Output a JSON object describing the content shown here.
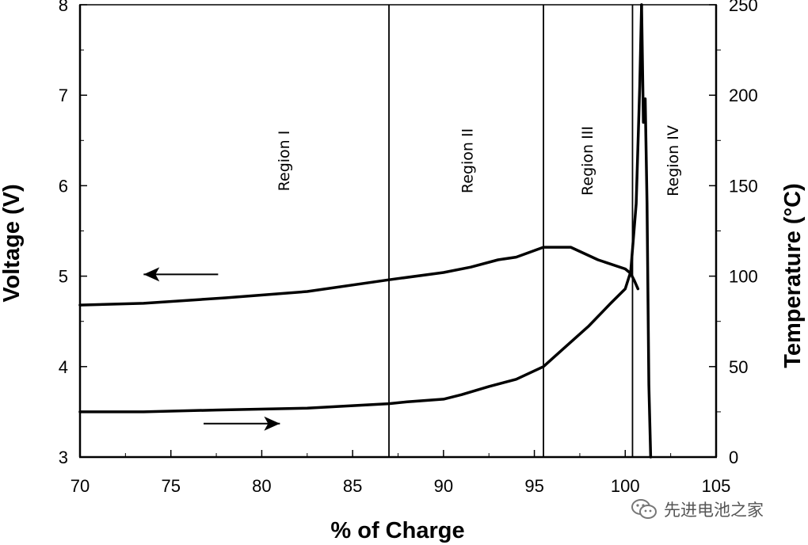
{
  "chart_data": {
    "type": "line",
    "xlabel": "% of Charge",
    "ylabel_left": "Voltage (V)",
    "ylabel_right": "Temperature (°C)",
    "xlim": [
      70,
      105
    ],
    "ylim_left": [
      3,
      8
    ],
    "ylim_right": [
      0,
      250
    ],
    "x_ticks": [
      "70",
      "75",
      "80",
      "85",
      "90",
      "95",
      "100",
      "105"
    ],
    "y_left_ticks": [
      "3",
      "4",
      "5",
      "6",
      "7",
      "8"
    ],
    "y_right_ticks": [
      "0",
      "50",
      "100",
      "150",
      "200",
      "250"
    ],
    "grid": false,
    "region_boundaries": [
      87.0,
      95.5,
      100.4
    ],
    "regions": [
      {
        "label": "Region I",
        "x": 81.2
      },
      {
        "label": "Region II",
        "x": 91.3
      },
      {
        "label": "Region III",
        "x": 97.9
      },
      {
        "label": "Region IV",
        "x": 102.6
      }
    ],
    "series": [
      {
        "axis": "left",
        "color": "#000000",
        "points": [
          [
            70,
            4.68
          ],
          [
            73.5,
            4.7
          ],
          [
            78,
            4.76
          ],
          [
            82.5,
            4.83
          ],
          [
            87,
            4.96
          ],
          [
            90,
            5.04
          ],
          [
            91.5,
            5.1
          ],
          [
            93,
            5.18
          ],
          [
            94,
            5.21
          ],
          [
            95.5,
            5.32
          ],
          [
            97,
            5.32
          ],
          [
            98.5,
            5.18
          ],
          [
            100,
            5.08
          ],
          [
            100.3,
            5.03
          ],
          [
            100.5,
            4.95
          ],
          [
            100.7,
            4.86
          ]
        ]
      },
      {
        "axis": "left",
        "color": "#000000",
        "points": [
          [
            70,
            3.5
          ],
          [
            73.5,
            3.5
          ],
          [
            77.5,
            3.52
          ],
          [
            82.5,
            3.54
          ],
          [
            87,
            3.59
          ],
          [
            88,
            3.61
          ],
          [
            90,
            3.64
          ],
          [
            91,
            3.69
          ],
          [
            92.5,
            3.78
          ],
          [
            94,
            3.86
          ],
          [
            95.5,
            4.0
          ],
          [
            96.5,
            4.18
          ],
          [
            98,
            4.45
          ],
          [
            99.2,
            4.7
          ],
          [
            100,
            4.86
          ],
          [
            100.3,
            5.05
          ],
          [
            100.6,
            5.8
          ],
          [
            100.8,
            7.1
          ],
          [
            100.9,
            8.0
          ]
        ]
      },
      {
        "axis": "right",
        "color": "#000000",
        "points": [
          [
            100.9,
            250
          ],
          [
            101.0,
            185
          ],
          [
            101.1,
            198
          ],
          [
            101.2,
            140
          ],
          [
            101.3,
            40
          ],
          [
            101.4,
            0
          ]
        ]
      }
    ],
    "arrows": [
      {
        "direction": "left",
        "from": [
          77.6,
          5.02
        ],
        "to": [
          73.5,
          5.02
        ]
      },
      {
        "direction": "right",
        "from": [
          76.8,
          3.37
        ],
        "to": [
          81.0,
          3.37
        ]
      }
    ]
  },
  "watermark": {
    "text": "先进电池之家",
    "icon": "wechat-icon"
  }
}
